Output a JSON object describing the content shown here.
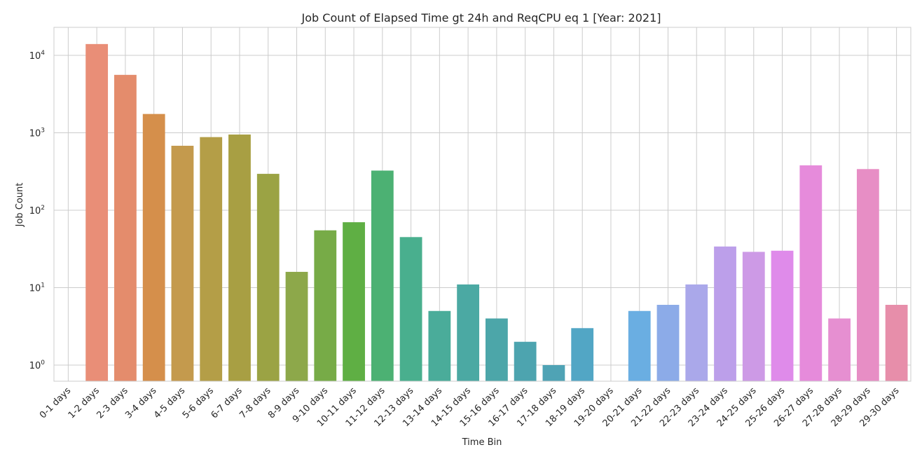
{
  "chart_data": {
    "type": "bar",
    "title": "Job Count of Elapsed Time gt 24h and ReqCPU eq 1 [Year: 2021]",
    "xlabel": "Time Bin",
    "ylabel": "Job Count",
    "yscale": "log",
    "ylim": [
      0.6,
      22000
    ],
    "grid": true,
    "y_ticks": [
      {
        "base": "10",
        "exp": "0",
        "value": 1
      },
      {
        "base": "10",
        "exp": "1",
        "value": 10
      },
      {
        "base": "10",
        "exp": "2",
        "value": 100
      },
      {
        "base": "10",
        "exp": "3",
        "value": 1000
      },
      {
        "base": "10",
        "exp": "4",
        "value": 10000
      }
    ],
    "categories": [
      "0-1 days",
      "1-2 days",
      "2-3 days",
      "3-4 days",
      "4-5 days",
      "5-6 days",
      "6-7 days",
      "7-8 days",
      "8-9 days",
      "9-10 days",
      "10-11 days",
      "11-12 days",
      "12-13 days",
      "13-14 days",
      "14-15 days",
      "15-16 days",
      "16-17 days",
      "17-18 days",
      "18-19 days",
      "19-20 days",
      "20-21 days",
      "21-22 days",
      "22-23 days",
      "23-24 days",
      "24-25 days",
      "25-26 days",
      "26-27 days",
      "27-28 days",
      "28-29 days",
      "29-30 days"
    ],
    "values": [
      0,
      14000,
      5600,
      1750,
      680,
      880,
      950,
      295,
      16,
      55,
      70,
      325,
      45,
      5,
      11,
      4,
      2,
      1,
      3,
      0,
      5,
      6,
      11,
      34,
      29,
      30,
      380,
      4,
      340,
      6
    ],
    "colors": [
      "#f77189",
      "#e98e77",
      "#e48c6c",
      "#d58f4b",
      "#c49a4d",
      "#b49e47",
      "#a89f43",
      "#9ba344",
      "#8da84a",
      "#77ab47",
      "#5faf44",
      "#4cb173",
      "#49af8e",
      "#4aac9a",
      "#4ba9a3",
      "#4ca6a9",
      "#4da4af",
      "#4fa3b5",
      "#52a6c5",
      "#63a9d9",
      "#6aaee2",
      "#8cabe8",
      "#aaa8ea",
      "#bc9fea",
      "#cd9ae6",
      "#df8bea",
      "#e68bdb",
      "#e68fd1",
      "#e78ec5",
      "#e78eaa"
    ]
  }
}
